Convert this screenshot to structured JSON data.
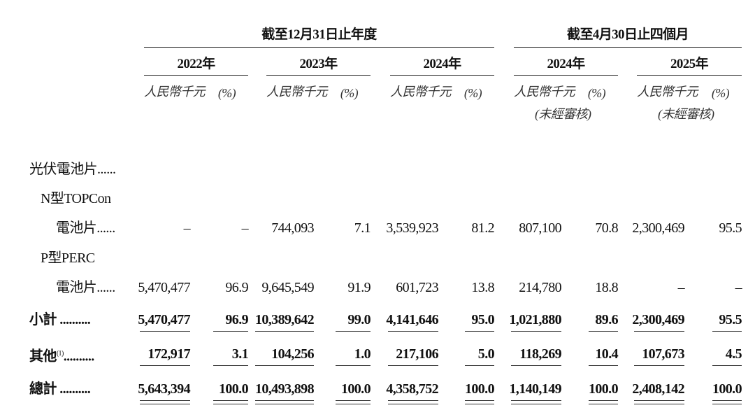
{
  "header": {
    "group1": "截至12月31日止年度",
    "group2": "截至4月30日止四個月",
    "years": [
      "2022年",
      "2023年",
      "2024年",
      "2024年",
      "2025年"
    ],
    "unit_amount": "人民幣千元",
    "unit_pct": "(%)",
    "unaudited": "(未經審核)"
  },
  "rows": [
    {
      "label": "光伏電池片......",
      "values": [],
      "bold": false
    },
    {
      "label": "N型TOPCon",
      "values": [],
      "bold": false
    },
    {
      "label": "電池片......",
      "values": [
        "–",
        "–",
        "744,093",
        "7.1",
        "3,539,923",
        "81.2",
        "807,100",
        "70.8",
        "2,300,469",
        "95.5"
      ],
      "bold": false
    },
    {
      "label": "P型PERC",
      "values": [],
      "bold": false
    },
    {
      "label": "電池片......",
      "values": [
        "5,470,477",
        "96.9",
        "9,645,549",
        "91.9",
        "601,723",
        "13.8",
        "214,780",
        "18.8",
        "–",
        "–"
      ],
      "bold": false
    },
    {
      "label": "小計 ..........",
      "values": [
        "5,470,477",
        "96.9",
        "10,389,642",
        "99.0",
        "4,141,646",
        "95.0",
        "1,021,880",
        "89.6",
        "2,300,469",
        "95.5"
      ],
      "bold": true
    },
    {
      "label": "其他",
      "footnote": "(1)",
      "dots": "..........",
      "values": [
        "172,917",
        "3.1",
        "104,256",
        "1.0",
        "217,106",
        "5.0",
        "118,269",
        "10.4",
        "107,673",
        "4.5"
      ],
      "bold": true
    },
    {
      "label": "總計 ..........",
      "values": [
        "5,643,394",
        "100.0",
        "10,493,898",
        "100.0",
        "4,358,752",
        "100.0",
        "1,140,149",
        "100.0",
        "2,408,142",
        "100.0"
      ],
      "bold": true
    }
  ]
}
